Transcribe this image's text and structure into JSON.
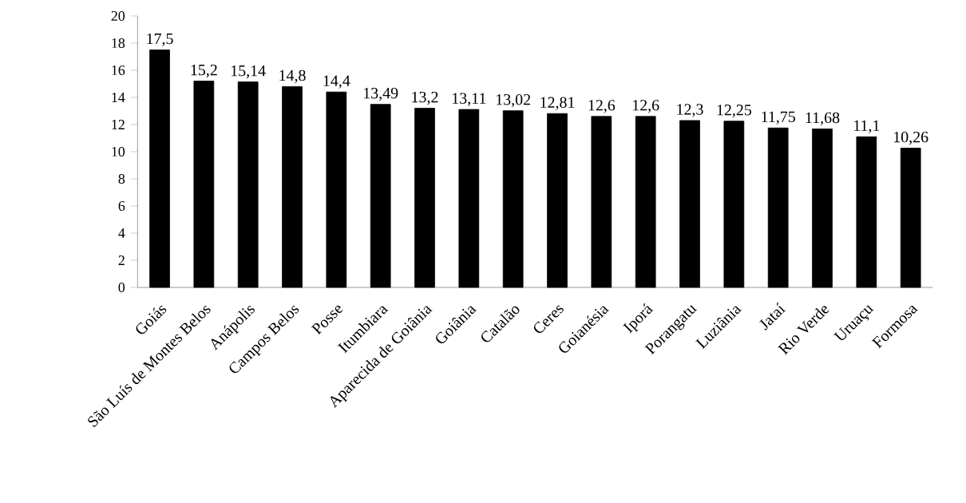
{
  "chart_data": {
    "type": "bar",
    "categories": [
      "Goiás",
      "São Luís de Montes Belos",
      "Anápolis",
      "Campos Belos",
      "Posse",
      "Itumbiara",
      "Aparecida de Goiânia",
      "Goiânia",
      "Catalão",
      "Ceres",
      "Goianésia",
      "Iporá",
      "Porangatu",
      "Luziânia",
      "Jataí",
      "Rio Verde",
      "Uruaçu",
      "Formosa"
    ],
    "values": [
      17.5,
      15.2,
      15.14,
      14.8,
      14.4,
      13.49,
      13.2,
      13.11,
      13.02,
      12.81,
      12.6,
      12.6,
      12.3,
      12.25,
      11.75,
      11.68,
      11.1,
      10.26
    ],
    "value_labels": [
      "17,5",
      "15,2",
      "15,14",
      "14,8",
      "14,4",
      "13,49",
      "13,2",
      "13,11",
      "13,02",
      "12,81",
      "12,6",
      "12,6",
      "12,3",
      "12,25",
      "11,75",
      "11,68",
      "11,1",
      "10,26"
    ],
    "color": "#000000",
    "ylim": [
      0,
      20
    ],
    "yticks": [
      0,
      2,
      4,
      6,
      8,
      10,
      12,
      14,
      16,
      18,
      20
    ],
    "grid": false
  }
}
